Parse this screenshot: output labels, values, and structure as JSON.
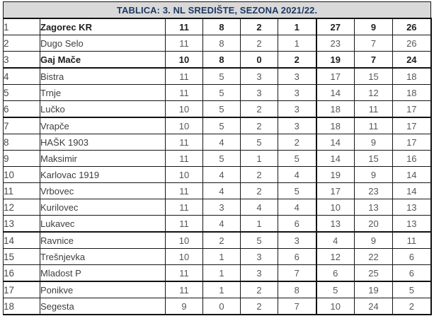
{
  "title": "TABLICA: 3. NL SREDIŠTE, SEZONA 2021/22.",
  "colors": {
    "header_bg": "#d9d9d9",
    "header_text": "#1f3864",
    "border": "#111111",
    "row_text": "#3e3e3e",
    "stat_text": "#575757",
    "highlight_text": "#1e1e1e"
  },
  "chart_data": {
    "type": "table",
    "title": "TABLICA: 3. NL SREDIŠTE, SEZONA 2021/22.",
    "column_semantics": [
      "position",
      "team",
      "played",
      "wins",
      "draws",
      "losses",
      "goals_for",
      "goals_against",
      "points"
    ],
    "column_headers_visible": false,
    "thick_border_below_positions": [
      3,
      6,
      13,
      16
    ],
    "rows": [
      {
        "pos": "1",
        "team": "Zagorec KR",
        "values": [
          11,
          8,
          2,
          1,
          27,
          9,
          26
        ],
        "bold": true
      },
      {
        "pos": "2",
        "team": "Dugo Selo",
        "values": [
          11,
          8,
          2,
          1,
          23,
          7,
          26
        ],
        "bold": false
      },
      {
        "pos": "3",
        "team": "Gaj Mače",
        "values": [
          10,
          8,
          0,
          2,
          19,
          7,
          24
        ],
        "bold": true
      },
      {
        "pos": "4",
        "team": "Bistra",
        "values": [
          11,
          5,
          3,
          3,
          17,
          15,
          18
        ],
        "bold": false
      },
      {
        "pos": "5",
        "team": "Trnje",
        "values": [
          11,
          5,
          3,
          3,
          14,
          12,
          18
        ],
        "bold": false
      },
      {
        "pos": "6",
        "team": "Lučko",
        "values": [
          10,
          5,
          2,
          3,
          18,
          11,
          17
        ],
        "bold": false
      },
      {
        "pos": "7",
        "team": "Vrapče",
        "values": [
          10,
          5,
          2,
          3,
          18,
          11,
          17
        ],
        "bold": false
      },
      {
        "pos": "8",
        "team": "HAŠK 1903",
        "values": [
          11,
          4,
          5,
          2,
          14,
          9,
          17
        ],
        "bold": false
      },
      {
        "pos": "9",
        "team": "Maksimir",
        "values": [
          11,
          5,
          1,
          5,
          14,
          15,
          16
        ],
        "bold": false
      },
      {
        "pos": "10",
        "team": "Karlovac 1919",
        "values": [
          10,
          4,
          2,
          4,
          19,
          9,
          14
        ],
        "bold": false
      },
      {
        "pos": "11",
        "team": "Vrbovec",
        "values": [
          11,
          4,
          2,
          5,
          17,
          23,
          14
        ],
        "bold": false
      },
      {
        "pos": "12",
        "team": "Kurilovec",
        "values": [
          11,
          3,
          4,
          4,
          10,
          13,
          13
        ],
        "bold": false
      },
      {
        "pos": "13",
        "team": "Lukavec",
        "values": [
          11,
          4,
          1,
          6,
          13,
          20,
          13
        ],
        "bold": false
      },
      {
        "pos": "14",
        "team": "Ravnice",
        "values": [
          10,
          2,
          5,
          3,
          4,
          9,
          11
        ],
        "bold": false
      },
      {
        "pos": "15",
        "team": "Trešnjevka",
        "values": [
          10,
          1,
          3,
          6,
          12,
          22,
          6
        ],
        "bold": false
      },
      {
        "pos": "16",
        "team": "Mladost P",
        "values": [
          11,
          1,
          3,
          7,
          6,
          25,
          6
        ],
        "bold": false
      },
      {
        "pos": "17",
        "team": "Ponikve",
        "values": [
          11,
          1,
          2,
          8,
          5,
          19,
          5
        ],
        "bold": false
      },
      {
        "pos": "18",
        "team": "Segesta",
        "values": [
          9,
          0,
          2,
          7,
          10,
          24,
          2
        ],
        "bold": false
      }
    ]
  }
}
